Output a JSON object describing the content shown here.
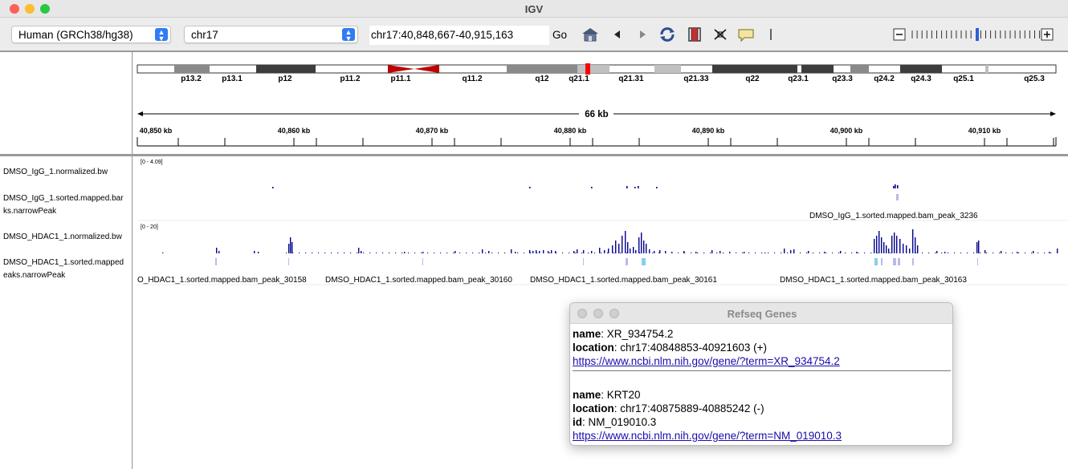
{
  "window": {
    "title": "IGV"
  },
  "toolbar": {
    "genome": "Human (GRCh38/hg38)",
    "chromosome": "chr17",
    "locus": "chr17:40,848,667-40,915,163",
    "go_label": "Go",
    "icons": [
      "home-icon",
      "back-arrow-icon",
      "forward-arrow-icon",
      "refresh-icon",
      "roi-icon",
      "resize-icon",
      "popup-text-icon",
      "divider"
    ]
  },
  "ideogram": {
    "bands": [
      "p13.2",
      "p13.1",
      "p12",
      "p11.2",
      "p11.1",
      "q11.2",
      "q12",
      "q21.1",
      "q21.31",
      "q21.33",
      "q22",
      "q23.1",
      "q23.3",
      "q24.2",
      "q24.3",
      "q25.1",
      "q25.3"
    ]
  },
  "ruler": {
    "span_label": "66 kb",
    "ticks": [
      "40,850 kb",
      "40,860 kb",
      "40,870 kb",
      "40,880 kb",
      "40,890 kb",
      "40,900 kb",
      "40,910 kb"
    ]
  },
  "tracks": [
    {
      "name": "DMSO_IgG_1.normalized.bw",
      "range": "[0 - 4.09]"
    },
    {
      "name_line1": "DMSO_IgG_1.sorted.mapped.bar",
      "name_line2": "ks.narrowPeak",
      "features": [
        "DMSO_IgG_1.sorted.mapped.bam_peak_3236"
      ]
    },
    {
      "name": "DMSO_HDAC1_1.normalized.bw",
      "range": "[0 - 20]"
    },
    {
      "name_line1": "DMSO_HDAC1_1.sorted.mapped",
      "name_line2": "eaks.narrowPeak",
      "features": [
        "O_HDAC1_1.sorted.mapped.bam_peak_30158",
        "DMSO_HDAC1_1.sorted.mapped.bam_peak_30160",
        "DMSO_HDAC1_1.sorted.mapped.bam_peak_30161",
        "DMSO_HDAC1_1.sorted.mapped.bam_peak_30163"
      ]
    }
  ],
  "popup": {
    "title": "Refseq Genes",
    "k_name": "name",
    "k_location": "location",
    "k_id": "id",
    "g1_name": ": XR_934754.2",
    "g1_location": ": chr17:40848853-40921603 (+)",
    "g1_link": "https://www.ncbi.nlm.nih.gov/gene/?term=XR_934754.2",
    "g2_name": ": KRT20",
    "g2_location": ": chr17:40875889-40885242 (-)",
    "g2_id": ": NM_019010.3",
    "g2_link": "https://www.ncbi.nlm.nih.gov/gene/?term=NM_019010.3"
  },
  "colors": {
    "coverage": "#00008b",
    "peaks": "#b7bbe8",
    "peaks_selected": "#8ecbf0",
    "centromere": "#c00000",
    "highlight": "#ff0000"
  }
}
